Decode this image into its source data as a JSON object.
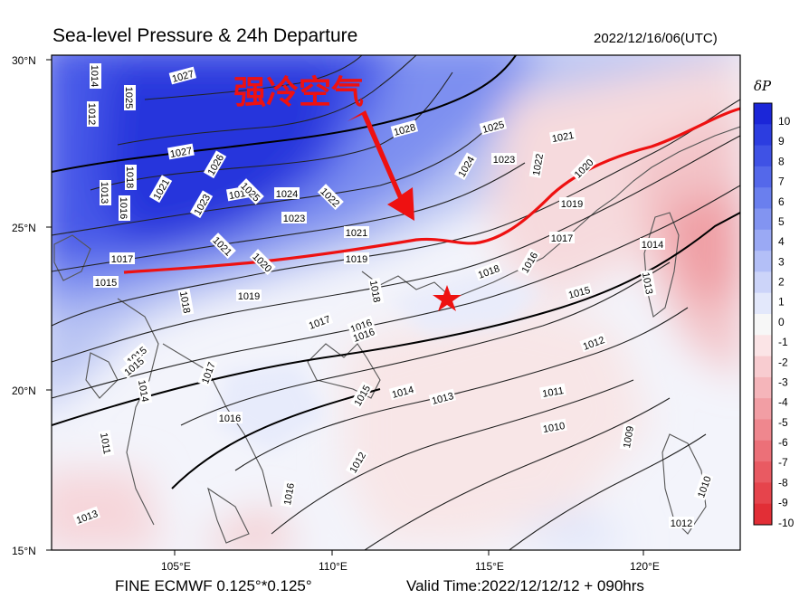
{
  "title": "Sea-level Pressure & 24h Departure",
  "datetime": "2022/12/16/06(UTC)",
  "footer": {
    "model": "FINE ECMWF 0.125°*0.125°",
    "valid": "Valid Time:2022/12/12/12 + 090hrs"
  },
  "map": {
    "lon_ticks": [
      "105°E",
      "110°E",
      "115°E",
      "120°E"
    ],
    "lat_ticks": [
      "30°N",
      "25°N",
      "20°N",
      "15°N"
    ],
    "annotation_text": "强冷空气",
    "marker": "red-star",
    "colors": {
      "cold_front_line": "#ee1111",
      "positive": "#1f2fe0",
      "negative": "#ee3333"
    },
    "isobar_labels": [
      "1014",
      "1025",
      "1027",
      "1012",
      "1019",
      "1027",
      "1026",
      "1028",
      "1025",
      "1021",
      "1018",
      "1021",
      "1023",
      "1025",
      "1024",
      "1022",
      "1024",
      "1023",
      "1022",
      "1020",
      "1013",
      "1016",
      "1023",
      "1021",
      "1021",
      "1019",
      "1019",
      "1017",
      "1014",
      "1017",
      "1020",
      "1015",
      "1018",
      "1019",
      "1018",
      "1016",
      "1018",
      "1015",
      "1016",
      "1017",
      "1015",
      "1013",
      "1016",
      "1014",
      "1012",
      "1015",
      "1014",
      "1013",
      "1011",
      "1010",
      "1009",
      "1017",
      "1016",
      "1012",
      "1013",
      "1012",
      "1011",
      "1010",
      "1015",
      "1016"
    ]
  },
  "colorbar": {
    "label": "δP",
    "ticks": [
      "10",
      "9",
      "8",
      "7",
      "6",
      "5",
      "4",
      "3",
      "2",
      "1",
      "0",
      "-1",
      "-2",
      "-3",
      "-4",
      "-5",
      "-6",
      "-7",
      "-8",
      "-9",
      "-10"
    ],
    "colors": [
      "#1b26d8",
      "#2c3de0",
      "#3f52e5",
      "#5468ea",
      "#6a7fee",
      "#8294f1",
      "#9aa9f4",
      "#b3bff7",
      "#ccd4f9",
      "#e3e8fb",
      "#f7f7f7",
      "#fbe4e6",
      "#f8ccd0",
      "#f5b5ba",
      "#f29ea4",
      "#ef878e",
      "#ec7078",
      "#e95a62",
      "#e6444c",
      "#e22e36"
    ]
  }
}
